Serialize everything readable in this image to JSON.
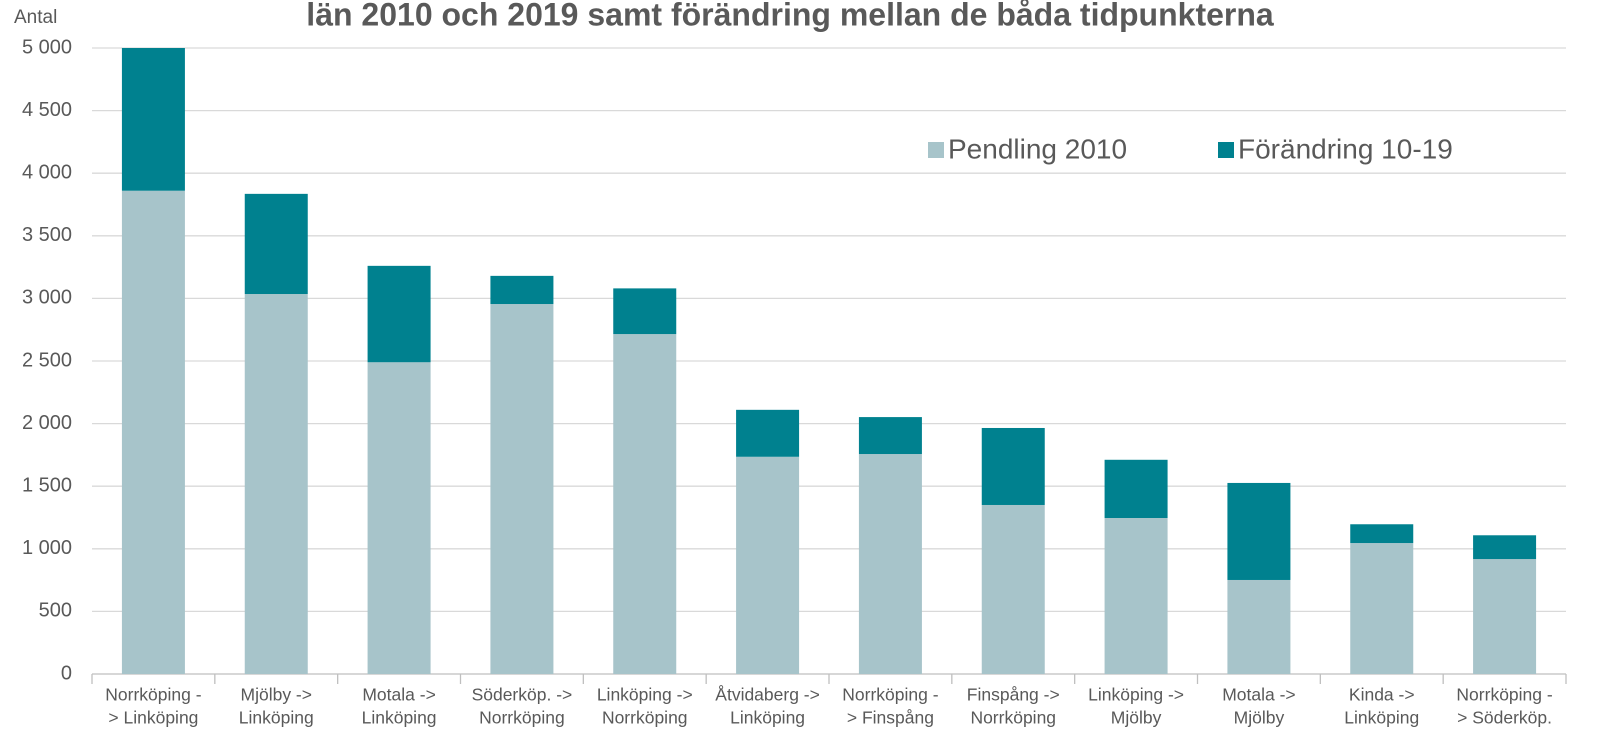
{
  "chart_data": {
    "type": "stacked_bar",
    "title": "län 2010 och 2019 samt förändring mellan de båda tidpunkterna",
    "y_label": "Antal",
    "categories": [
      [
        "Norrköping -",
        "> Linköping"
      ],
      [
        "Mjölby ->",
        "Linköping"
      ],
      [
        "Motala ->",
        "Linköping"
      ],
      [
        "Söderköp.  ->",
        "Norrköping"
      ],
      [
        "Linköping ->",
        "Norrköping"
      ],
      [
        "Åtvidaberg ->",
        "Linköping"
      ],
      [
        "Norrköping -",
        "> Finspång"
      ],
      [
        "Finspång  ->",
        "Norrköping"
      ],
      [
        "Linköping ->",
        "Mjölby"
      ],
      [
        "Motala  ->",
        "Mjölby"
      ],
      [
        "Kinda ->",
        "Linköping"
      ],
      [
        "Norrköping -",
        "> Söderköp."
      ]
    ],
    "series": [
      {
        "name": "Pendling 2010",
        "color": "#a7c4ca",
        "values": [
          3860,
          3035,
          2490,
          2955,
          2715,
          1735,
          1757,
          1350,
          1246,
          751,
          1046,
          918
        ]
      },
      {
        "name": "Förändring 10-19",
        "color": "#00818f",
        "values": [
          1140,
          800,
          770,
          225,
          365,
          375,
          295,
          615,
          465,
          775,
          150,
          190
        ]
      }
    ],
    "ylim": [
      0,
      5000
    ],
    "yticks": [
      0,
      500,
      {
        "value": 1000,
        "label": "1 000"
      },
      {
        "value": 1500,
        "label": "1 500"
      },
      {
        "value": 2000,
        "label": "2 000"
      },
      {
        "value": 2500,
        "label": "2 500"
      },
      {
        "value": 3000,
        "label": "3 000"
      },
      {
        "value": 3500,
        "label": "3 500"
      },
      {
        "value": 4000,
        "label": "4 000"
      },
      {
        "value": 4500,
        "label": "4 500"
      },
      {
        "value": 5000,
        "label": "5 000"
      }
    ],
    "grid": true,
    "legend": "top-right"
  }
}
